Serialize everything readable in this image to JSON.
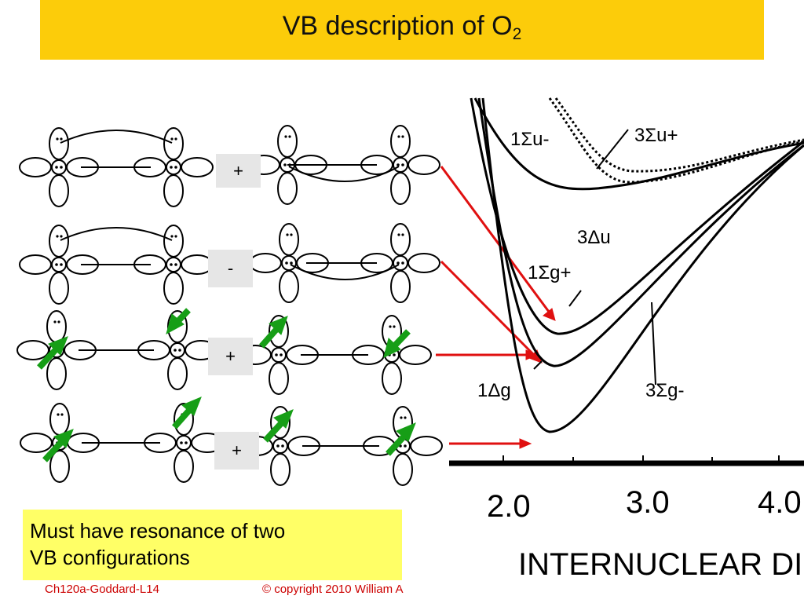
{
  "slide": {
    "title_main": "VB description of O",
    "title_sub": "2"
  },
  "signs": [
    "+",
    "-",
    "+",
    "+"
  ],
  "note": {
    "line1": "Must have resonance of two",
    "line2": "VB configurations"
  },
  "footer": {
    "left": "Ch120a-Goddard-L14",
    "center": "© copyright 2010 William A"
  },
  "plot": {
    "xlabel": "INTERNUCLEAR DISTA",
    "x_ticks": [
      "2.0",
      "3.0",
      "4.0"
    ],
    "states": {
      "sigma_u_minus": "1Σu-",
      "sigma_u_plus": "3Σu+",
      "delta_u": "3Δu",
      "sigma_g_plus": "1Σg+",
      "delta_g": "1Δg",
      "sigma_g_minus": "3Σg-"
    }
  },
  "colors": {
    "title_bar": "#fccc0a",
    "note_bg": "#ffff66",
    "arrow_red": "#e01010",
    "arrow_green": "#169e16",
    "footer_text": "#cc0000"
  }
}
